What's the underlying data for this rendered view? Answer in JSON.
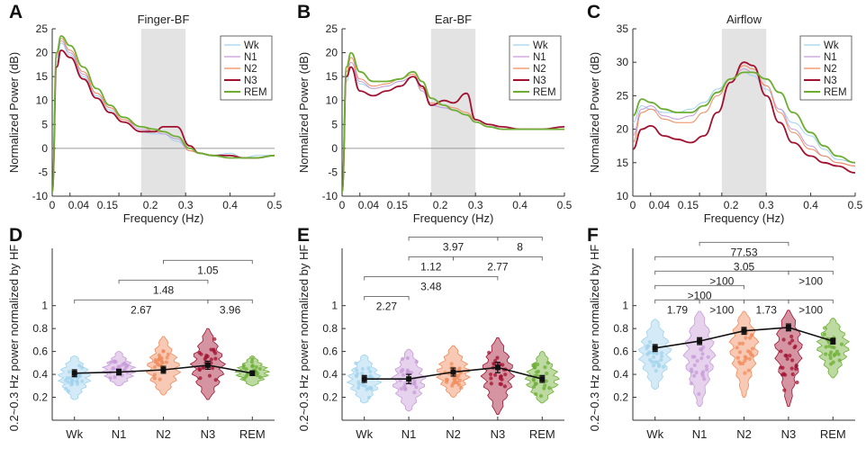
{
  "colors": {
    "Wk": "#9fd2ee",
    "N1": "#c79bd8",
    "N2": "#f08a5a",
    "N3": "#a11230",
    "REM": "#6cae32"
  },
  "chart_data": [
    {
      "panel": "A",
      "type": "line",
      "title": "Finger-BF",
      "xlabel": "Frequency (Hz)",
      "ylabel": "Normalized Power (dB)",
      "xlim": [
        0,
        0.5
      ],
      "ylim": [
        -10,
        25
      ],
      "xticks": [
        0,
        0.04,
        0.15,
        0.2,
        0.3,
        0.4,
        0.5
      ],
      "xtick_labels": [
        "0",
        "0.04",
        "0.15",
        "0.2",
        "0.3",
        "0.4",
        "0.5"
      ],
      "yticks": [
        -10,
        -5,
        0,
        5,
        10,
        15,
        20,
        25
      ],
      "shade": [
        0.2,
        0.3
      ],
      "zero_line": true,
      "legend": "top-right",
      "series": [
        {
          "name": "Wk",
          "x": [
            0,
            0.01,
            0.02,
            0.04,
            0.07,
            0.1,
            0.13,
            0.16,
            0.2,
            0.23,
            0.25,
            0.28,
            0.31,
            0.33,
            0.36,
            0.4,
            0.43,
            0.46,
            0.5
          ],
          "y": [
            -9,
            18,
            22,
            19.5,
            15,
            11,
            8,
            5.5,
            3.5,
            3,
            3,
            1.5,
            -0.5,
            -1,
            -1.5,
            -1,
            -2,
            -1.5,
            -1.5
          ]
        },
        {
          "name": "N1",
          "x": [
            0,
            0.01,
            0.02,
            0.04,
            0.07,
            0.1,
            0.13,
            0.16,
            0.2,
            0.23,
            0.25,
            0.28,
            0.31,
            0.33,
            0.36,
            0.4,
            0.43,
            0.46,
            0.5
          ],
          "y": [
            -9,
            19,
            22.5,
            20,
            15.5,
            11.5,
            8.5,
            6,
            4,
            3.5,
            3,
            2,
            -0.5,
            -1,
            -1.5,
            -1.5,
            -2,
            -2,
            -1.5
          ]
        },
        {
          "name": "N2",
          "x": [
            0,
            0.01,
            0.02,
            0.04,
            0.07,
            0.1,
            0.13,
            0.16,
            0.2,
            0.23,
            0.25,
            0.28,
            0.31,
            0.33,
            0.36,
            0.4,
            0.43,
            0.46,
            0.5
          ],
          "y": [
            -9,
            19.5,
            23,
            20.5,
            16,
            11.5,
            8.5,
            6,
            4.5,
            3.5,
            3.5,
            2.5,
            -0.5,
            -1,
            -1.5,
            -1.5,
            -2,
            -2,
            -1.5
          ]
        },
        {
          "name": "N3",
          "x": [
            0,
            0.01,
            0.02,
            0.04,
            0.07,
            0.1,
            0.13,
            0.16,
            0.2,
            0.23,
            0.25,
            0.28,
            0.31,
            0.33,
            0.36,
            0.4,
            0.43,
            0.46,
            0.5
          ],
          "y": [
            -9,
            17,
            20.5,
            19,
            14.5,
            10.5,
            7.5,
            5.5,
            3.5,
            3.5,
            4.5,
            4.5,
            0.5,
            -1,
            -1.5,
            -1.5,
            -2,
            -2,
            -1.5
          ]
        },
        {
          "name": "REM",
          "x": [
            0,
            0.01,
            0.02,
            0.04,
            0.07,
            0.1,
            0.13,
            0.16,
            0.2,
            0.23,
            0.25,
            0.28,
            0.31,
            0.33,
            0.36,
            0.4,
            0.43,
            0.46,
            0.5
          ],
          "y": [
            -9,
            20,
            23.5,
            21.5,
            17,
            12.5,
            9,
            6.5,
            4.5,
            4,
            3.5,
            2.5,
            0,
            -1,
            -1.5,
            -2,
            -2,
            -2,
            -1.5
          ]
        }
      ]
    },
    {
      "panel": "B",
      "type": "line",
      "title": "Ear-BF",
      "xlabel": "Frequency (Hz)",
      "ylabel": "Normalized Power (dB)",
      "xlim": [
        0,
        0.5
      ],
      "ylim": [
        -10,
        25
      ],
      "xticks": [
        0,
        0.04,
        0.15,
        0.2,
        0.3,
        0.4,
        0.5
      ],
      "xtick_labels": [
        "0",
        "0.04",
        "0.15",
        "0.2",
        "0.3",
        "0.4",
        "0.5"
      ],
      "yticks": [
        -10,
        -5,
        0,
        5,
        10,
        15,
        20,
        25
      ],
      "shade": [
        0.2,
        0.3
      ],
      "zero_line": true,
      "legend": "top-right",
      "series": [
        {
          "name": "Wk",
          "x": [
            0,
            0.01,
            0.02,
            0.04,
            0.07,
            0.1,
            0.13,
            0.16,
            0.18,
            0.2,
            0.23,
            0.25,
            0.28,
            0.3,
            0.33,
            0.36,
            0.4,
            0.45,
            0.5
          ],
          "y": [
            -9,
            14,
            17,
            13.5,
            12.5,
            13,
            14,
            15,
            12,
            9,
            8.5,
            8,
            7,
            5.5,
            4.5,
            4.5,
            4,
            4,
            4
          ]
        },
        {
          "name": "N1",
          "x": [
            0,
            0.01,
            0.02,
            0.04,
            0.07,
            0.1,
            0.13,
            0.16,
            0.18,
            0.2,
            0.23,
            0.25,
            0.28,
            0.3,
            0.33,
            0.36,
            0.4,
            0.45,
            0.5
          ],
          "y": [
            -9,
            15,
            18,
            14,
            12.5,
            13,
            14,
            15,
            12,
            9,
            8.5,
            8,
            7,
            5.5,
            4.5,
            4.5,
            4,
            4,
            4
          ]
        },
        {
          "name": "N2",
          "x": [
            0,
            0.01,
            0.02,
            0.04,
            0.07,
            0.1,
            0.13,
            0.16,
            0.18,
            0.2,
            0.23,
            0.25,
            0.28,
            0.3,
            0.33,
            0.36,
            0.4,
            0.45,
            0.5
          ],
          "y": [
            -9,
            16,
            19,
            14.5,
            13,
            13.5,
            14.5,
            15.5,
            12.5,
            9.5,
            9,
            8.5,
            7.5,
            6,
            5,
            4.5,
            4,
            4,
            4
          ]
        },
        {
          "name": "N3",
          "x": [
            0,
            0.01,
            0.02,
            0.04,
            0.07,
            0.1,
            0.13,
            0.16,
            0.18,
            0.2,
            0.23,
            0.25,
            0.28,
            0.3,
            0.33,
            0.36,
            0.4,
            0.45,
            0.5
          ],
          "y": [
            -9,
            15,
            17,
            12,
            11,
            12,
            13,
            15,
            13,
            9,
            10,
            9.5,
            11.5,
            6,
            5,
            4.5,
            4,
            4,
            4.5
          ]
        },
        {
          "name": "REM",
          "x": [
            0,
            0.01,
            0.02,
            0.04,
            0.07,
            0.1,
            0.13,
            0.16,
            0.18,
            0.2,
            0.23,
            0.25,
            0.28,
            0.3,
            0.33,
            0.36,
            0.4,
            0.45,
            0.5
          ],
          "y": [
            -9,
            17,
            20,
            16,
            14,
            14,
            14.5,
            16,
            14,
            10.5,
            9,
            8,
            7,
            5.5,
            4.5,
            4,
            4,
            4,
            4
          ]
        }
      ]
    },
    {
      "panel": "C",
      "type": "line",
      "title": "Airflow",
      "xlabel": "Frequency (Hz)",
      "ylabel": "Normalized Power (dB)",
      "xlim": [
        0,
        0.5
      ],
      "ylim": [
        10,
        35
      ],
      "xticks": [
        0,
        0.04,
        0.15,
        0.2,
        0.3,
        0.4,
        0.5
      ],
      "xtick_labels": [
        "0",
        "0.04",
        "0.15",
        "0.2",
        "0.3",
        "0.4",
        "0.5"
      ],
      "yticks": [
        10,
        15,
        20,
        25,
        30,
        35
      ],
      "shade": [
        0.2,
        0.3
      ],
      "zero_line": false,
      "legend": "top-right",
      "series": [
        {
          "name": "Wk",
          "x": [
            0,
            0.02,
            0.04,
            0.07,
            0.1,
            0.13,
            0.16,
            0.19,
            0.22,
            0.25,
            0.27,
            0.3,
            0.33,
            0.36,
            0.4,
            0.43,
            0.46,
            0.5
          ],
          "y": [
            21,
            23.5,
            23,
            22.5,
            22.5,
            23,
            24,
            26,
            27.5,
            28.5,
            28,
            26,
            23,
            21,
            19,
            17,
            15.5,
            15
          ]
        },
        {
          "name": "N1",
          "x": [
            0,
            0.02,
            0.04,
            0.07,
            0.1,
            0.13,
            0.16,
            0.19,
            0.22,
            0.25,
            0.27,
            0.3,
            0.33,
            0.36,
            0.4,
            0.43,
            0.46,
            0.5
          ],
          "y": [
            19,
            23,
            23.5,
            22,
            21.5,
            22,
            23.5,
            25.5,
            27.5,
            29,
            28.5,
            26.5,
            23,
            20,
            17.5,
            16,
            15,
            14.5
          ]
        },
        {
          "name": "N2",
          "x": [
            0,
            0.02,
            0.04,
            0.07,
            0.1,
            0.13,
            0.16,
            0.19,
            0.22,
            0.25,
            0.27,
            0.3,
            0.33,
            0.36,
            0.4,
            0.43,
            0.46,
            0.5
          ],
          "y": [
            18,
            22.5,
            23,
            21.5,
            21,
            21,
            22.5,
            25,
            27.5,
            29.5,
            29,
            26.5,
            22.5,
            19.5,
            17,
            16,
            15,
            14.5
          ]
        },
        {
          "name": "N3",
          "x": [
            0,
            0.02,
            0.04,
            0.07,
            0.1,
            0.13,
            0.16,
            0.19,
            0.22,
            0.25,
            0.27,
            0.3,
            0.33,
            0.36,
            0.4,
            0.43,
            0.46,
            0.5
          ],
          "y": [
            17,
            20,
            20.5,
            19,
            18.5,
            18,
            19,
            22.5,
            27,
            30,
            29.5,
            25,
            21,
            18,
            16,
            15,
            14.5,
            13.5
          ]
        },
        {
          "name": "REM",
          "x": [
            0,
            0.02,
            0.04,
            0.07,
            0.1,
            0.13,
            0.16,
            0.19,
            0.22,
            0.25,
            0.27,
            0.3,
            0.33,
            0.36,
            0.4,
            0.43,
            0.46,
            0.5
          ],
          "y": [
            22,
            24.5,
            24,
            23,
            22.5,
            22.5,
            23.5,
            25.5,
            27.5,
            28.5,
            28.5,
            27.5,
            25.5,
            22.5,
            19.5,
            17.5,
            16,
            15
          ]
        }
      ]
    },
    {
      "panel": "D",
      "type": "violin",
      "categories": [
        "Wk",
        "N1",
        "N2",
        "N3",
        "REM"
      ],
      "ylabel": "0.2~0.3 Hz power normalized by HF",
      "ylim": [
        0,
        1.5
      ],
      "yticks": [
        0.2,
        0.4,
        0.6,
        0.8,
        1
      ],
      "means": [
        0.41,
        0.42,
        0.44,
        0.48,
        0.41
      ],
      "sem": [
        0.03,
        0.025,
        0.03,
        0.035,
        0.02
      ],
      "ranges": [
        [
          0.18,
          0.56
        ],
        [
          0.3,
          0.6
        ],
        [
          0.22,
          0.73
        ],
        [
          0.18,
          0.8
        ],
        [
          0.3,
          0.56
        ]
      ],
      "brackets": [
        {
          "from": "Wk",
          "to": "N3",
          "label": "2.67"
        },
        {
          "from": "N3",
          "to": "REM",
          "label": "3.96"
        },
        {
          "from": "N1",
          "to": "N3",
          "label": "1.48"
        },
        {
          "from": "N2",
          "to": "REM",
          "label": "1.05"
        }
      ]
    },
    {
      "panel": "E",
      "type": "violin",
      "categories": [
        "Wk",
        "N1",
        "N2",
        "N3",
        "REM"
      ],
      "ylabel": "0.2~0.3 Hz power normalized by HF",
      "ylim": [
        0,
        1.5
      ],
      "yticks": [
        0.2,
        0.4,
        0.6,
        0.8,
        1
      ],
      "means": [
        0.36,
        0.36,
        0.42,
        0.46,
        0.36
      ],
      "sem": [
        0.03,
        0.04,
        0.035,
        0.045,
        0.03
      ],
      "ranges": [
        [
          0.15,
          0.57
        ],
        [
          0.08,
          0.62
        ],
        [
          0.2,
          0.65
        ],
        [
          0.05,
          0.72
        ],
        [
          0.15,
          0.6
        ]
      ],
      "brackets": [
        {
          "from": "Wk",
          "to": "N1",
          "label": "2.27"
        },
        {
          "from": "Wk",
          "to": "N3",
          "label": "3.48"
        },
        {
          "from": "N1",
          "to": "N2",
          "label": "1.12"
        },
        {
          "from": "N2",
          "to": "REM",
          "label": "2.77"
        },
        {
          "from": "N1",
          "to": "N3",
          "label": "3.97"
        },
        {
          "from": "N3",
          "to": "REM",
          "label": "8"
        }
      ]
    },
    {
      "panel": "F",
      "type": "violin",
      "categories": [
        "Wk",
        "N1",
        "N2",
        "N3",
        "REM"
      ],
      "ylabel": "0.2~0.3 Hz power normalized by HF",
      "ylim": [
        0,
        1.5
      ],
      "yticks": [
        0.2,
        0.4,
        0.6,
        0.8,
        1
      ],
      "means": [
        0.63,
        0.69,
        0.78,
        0.81,
        0.69
      ],
      "sem": [
        0.03,
        0.03,
        0.03,
        0.03,
        0.025
      ],
      "ranges": [
        [
          0.27,
          0.88
        ],
        [
          0.12,
          0.95
        ],
        [
          0.2,
          0.95
        ],
        [
          0.12,
          0.96
        ],
        [
          0.37,
          0.89
        ]
      ],
      "brackets": [
        {
          "from": "Wk",
          "to": "N1",
          "label": "1.79"
        },
        {
          "from": "N1",
          "to": "N2",
          "label": ">100"
        },
        {
          "from": "N2",
          "to": "N3",
          "label": "1.73"
        },
        {
          "from": "N3",
          "to": "REM",
          "label": ">100"
        },
        {
          "from": "Wk",
          "to": "N2",
          "label": ">100"
        },
        {
          "from": "Wk",
          "to": "N3",
          "label": ">100"
        },
        {
          "from": "N3",
          "to": "REM",
          "label": ">100"
        },
        {
          "from": "Wk",
          "to": "REM",
          "label": "3.05"
        },
        {
          "from": "N1",
          "to": "N3",
          "label": "77.53"
        }
      ]
    }
  ]
}
